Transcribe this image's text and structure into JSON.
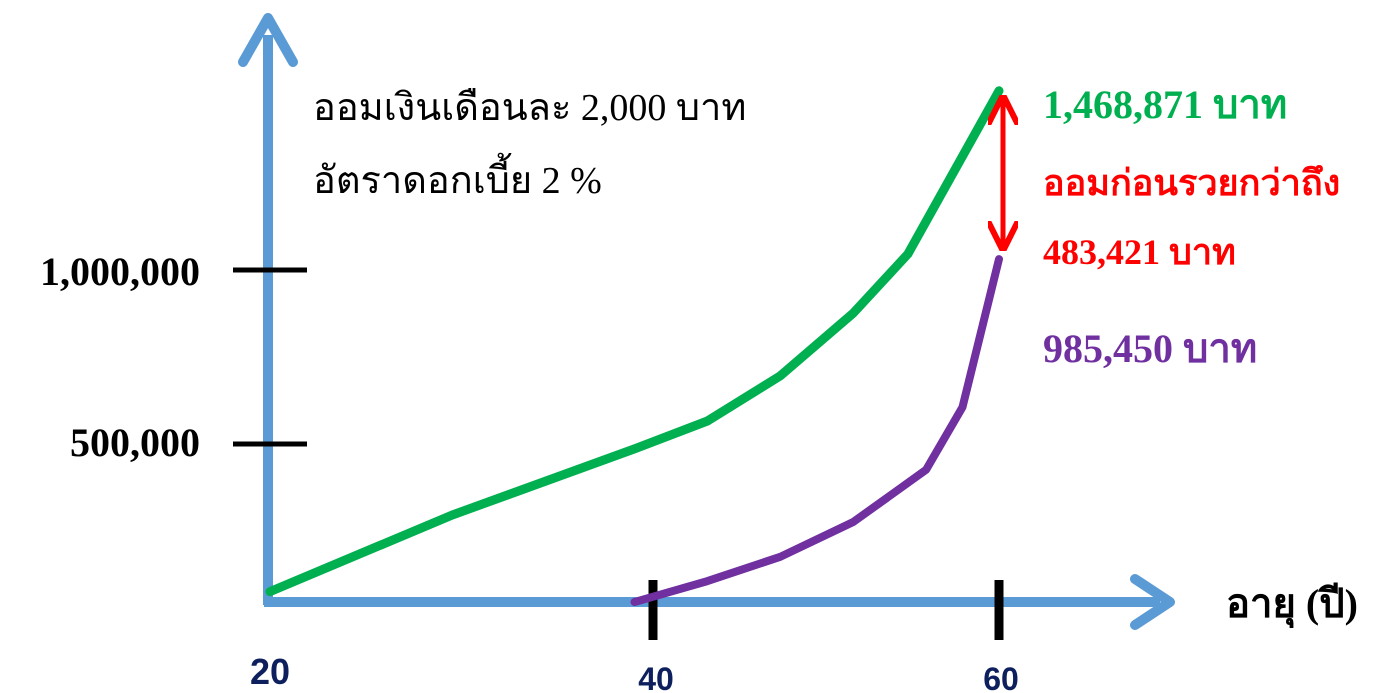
{
  "chart_data": {
    "type": "line",
    "xlabel": "อายุ (ปี)",
    "x_ticks": [
      "20",
      "40",
      "60"
    ],
    "y_ticks": [
      "500,000",
      "1,000,000"
    ],
    "xlim": [
      20,
      60
    ],
    "ylim": [
      0,
      1468871
    ],
    "annotations": {
      "note_line1": "ออมเงินเดือนละ 2,000 บาท",
      "note_line2": "อัตราดอกเบี้ย 2 %",
      "green_end_label": "1,468,871 บาท",
      "diff_line1": "ออมก่อนรวยกว่าถึง",
      "diff_line2": "483,421 บาท",
      "purple_end_label": "985,450 บาท"
    },
    "series": [
      {
        "color": "#00b050",
        "points": [
          [
            20,
            30000
          ],
          [
            30,
            250000
          ],
          [
            40,
            440000
          ],
          [
            44,
            520000
          ],
          [
            48,
            650000
          ],
          [
            52,
            830000
          ],
          [
            55,
            1000000
          ],
          [
            60,
            1468871
          ]
        ]
      },
      {
        "color": "#7030a0",
        "points": [
          [
            40,
            0
          ],
          [
            44,
            60000
          ],
          [
            48,
            130000
          ],
          [
            52,
            230000
          ],
          [
            56,
            380000
          ],
          [
            58,
            560000
          ],
          [
            60,
            985450
          ]
        ]
      }
    ],
    "difference_arrow_color": "#ff0000",
    "axis_color": "#5b9bd5",
    "grid": false
  }
}
